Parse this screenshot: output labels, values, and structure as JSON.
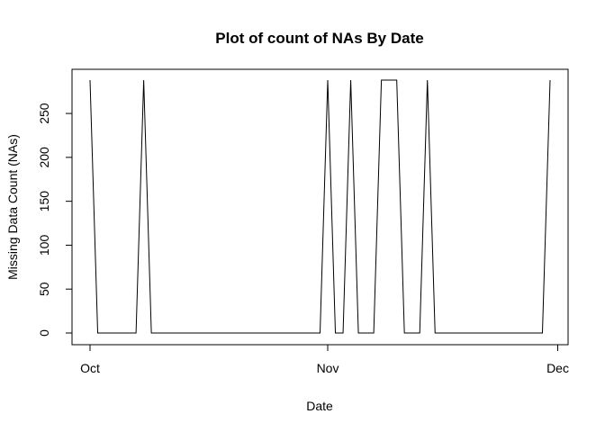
{
  "chart_data": {
    "type": "line",
    "title": "Plot of count of NAs By Date",
    "xlabel": "Date",
    "ylabel": "Missing Data Count (NAs)",
    "x_tick_labels": [
      {
        "label": "Oct",
        "date": "2012-10-01"
      },
      {
        "label": "Nov",
        "date": "2012-11-01"
      },
      {
        "label": "Dec",
        "date": "2012-12-01"
      }
    ],
    "y_ticks": [
      0,
      50,
      100,
      150,
      200,
      250
    ],
    "xlim": [
      "2012-10-01",
      "2012-11-30"
    ],
    "ylim": [
      0,
      288
    ],
    "grid": false,
    "legend": "none",
    "line_color": "#000000",
    "series": [
      {
        "x": [
          "2012-10-01",
          "2012-10-02",
          "2012-10-03",
          "2012-10-04",
          "2012-10-05",
          "2012-10-06",
          "2012-10-07",
          "2012-10-08",
          "2012-10-09",
          "2012-10-10",
          "2012-10-11",
          "2012-10-12",
          "2012-10-13",
          "2012-10-14",
          "2012-10-15",
          "2012-10-16",
          "2012-10-17",
          "2012-10-18",
          "2012-10-19",
          "2012-10-20",
          "2012-10-21",
          "2012-10-22",
          "2012-10-23",
          "2012-10-24",
          "2012-10-25",
          "2012-10-26",
          "2012-10-27",
          "2012-10-28",
          "2012-10-29",
          "2012-10-30",
          "2012-10-31",
          "2012-11-01",
          "2012-11-02",
          "2012-11-03",
          "2012-11-04",
          "2012-11-05",
          "2012-11-06",
          "2012-11-07",
          "2012-11-08",
          "2012-11-09",
          "2012-11-10",
          "2012-11-11",
          "2012-11-12",
          "2012-11-13",
          "2012-11-14",
          "2012-11-15",
          "2012-11-16",
          "2012-11-17",
          "2012-11-18",
          "2012-11-19",
          "2012-11-20",
          "2012-11-21",
          "2012-11-22",
          "2012-11-23",
          "2012-11-24",
          "2012-11-25",
          "2012-11-26",
          "2012-11-27",
          "2012-11-28",
          "2012-11-29",
          "2012-11-30"
        ],
        "values": [
          288,
          0,
          0,
          0,
          0,
          0,
          0,
          288,
          0,
          0,
          0,
          0,
          0,
          0,
          0,
          0,
          0,
          0,
          0,
          0,
          0,
          0,
          0,
          0,
          0,
          0,
          0,
          0,
          0,
          0,
          0,
          288,
          0,
          0,
          288,
          0,
          0,
          0,
          288,
          288,
          288,
          0,
          0,
          0,
          288,
          0,
          0,
          0,
          0,
          0,
          0,
          0,
          0,
          0,
          0,
          0,
          0,
          0,
          0,
          0,
          288
        ]
      }
    ]
  }
}
